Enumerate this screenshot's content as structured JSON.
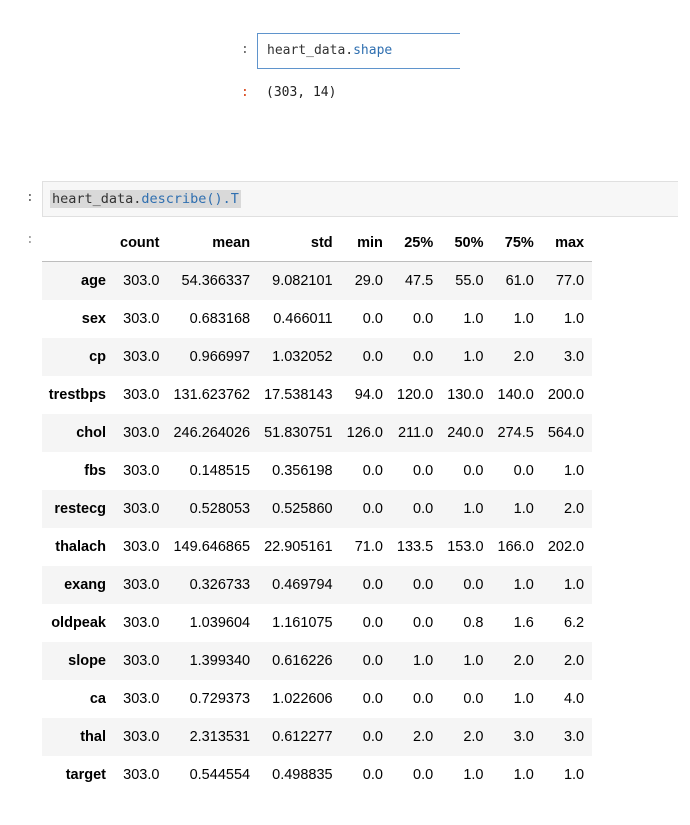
{
  "cell1": {
    "prompt": ":",
    "code_var": "heart_data.",
    "code_attr": "shape",
    "output_prompt": ":",
    "output": "(303, 14)"
  },
  "cell2": {
    "prompt": ":",
    "code_var": "heart_data.",
    "code_attr": "describe().T",
    "output_prompt": ":"
  },
  "table": {
    "columns": [
      "count",
      "mean",
      "std",
      "min",
      "25%",
      "50%",
      "75%",
      "max"
    ],
    "rows": [
      {
        "label": "age",
        "values": [
          "303.0",
          "54.366337",
          "9.082101",
          "29.0",
          "47.5",
          "55.0",
          "61.0",
          "77.0"
        ]
      },
      {
        "label": "sex",
        "values": [
          "303.0",
          "0.683168",
          "0.466011",
          "0.0",
          "0.0",
          "1.0",
          "1.0",
          "1.0"
        ]
      },
      {
        "label": "cp",
        "values": [
          "303.0",
          "0.966997",
          "1.032052",
          "0.0",
          "0.0",
          "1.0",
          "2.0",
          "3.0"
        ]
      },
      {
        "label": "trestbps",
        "values": [
          "303.0",
          "131.623762",
          "17.538143",
          "94.0",
          "120.0",
          "130.0",
          "140.0",
          "200.0"
        ]
      },
      {
        "label": "chol",
        "values": [
          "303.0",
          "246.264026",
          "51.830751",
          "126.0",
          "211.0",
          "240.0",
          "274.5",
          "564.0"
        ]
      },
      {
        "label": "fbs",
        "values": [
          "303.0",
          "0.148515",
          "0.356198",
          "0.0",
          "0.0",
          "0.0",
          "0.0",
          "1.0"
        ]
      },
      {
        "label": "restecg",
        "values": [
          "303.0",
          "0.528053",
          "0.525860",
          "0.0",
          "0.0",
          "1.0",
          "1.0",
          "2.0"
        ]
      },
      {
        "label": "thalach",
        "values": [
          "303.0",
          "149.646865",
          "22.905161",
          "71.0",
          "133.5",
          "153.0",
          "166.0",
          "202.0"
        ]
      },
      {
        "label": "exang",
        "values": [
          "303.0",
          "0.326733",
          "0.469794",
          "0.0",
          "0.0",
          "0.0",
          "1.0",
          "1.0"
        ]
      },
      {
        "label": "oldpeak",
        "values": [
          "303.0",
          "1.039604",
          "1.161075",
          "0.0",
          "0.0",
          "0.8",
          "1.6",
          "6.2"
        ]
      },
      {
        "label": "slope",
        "values": [
          "303.0",
          "1.399340",
          "0.616226",
          "0.0",
          "1.0",
          "1.0",
          "2.0",
          "2.0"
        ]
      },
      {
        "label": "ca",
        "values": [
          "303.0",
          "0.729373",
          "1.022606",
          "0.0",
          "0.0",
          "0.0",
          "1.0",
          "4.0"
        ]
      },
      {
        "label": "thal",
        "values": [
          "303.0",
          "2.313531",
          "0.612277",
          "0.0",
          "2.0",
          "2.0",
          "3.0",
          "3.0"
        ]
      },
      {
        "label": "target",
        "values": [
          "303.0",
          "0.544554",
          "0.498835",
          "0.0",
          "0.0",
          "1.0",
          "1.0",
          "1.0"
        ]
      }
    ]
  }
}
